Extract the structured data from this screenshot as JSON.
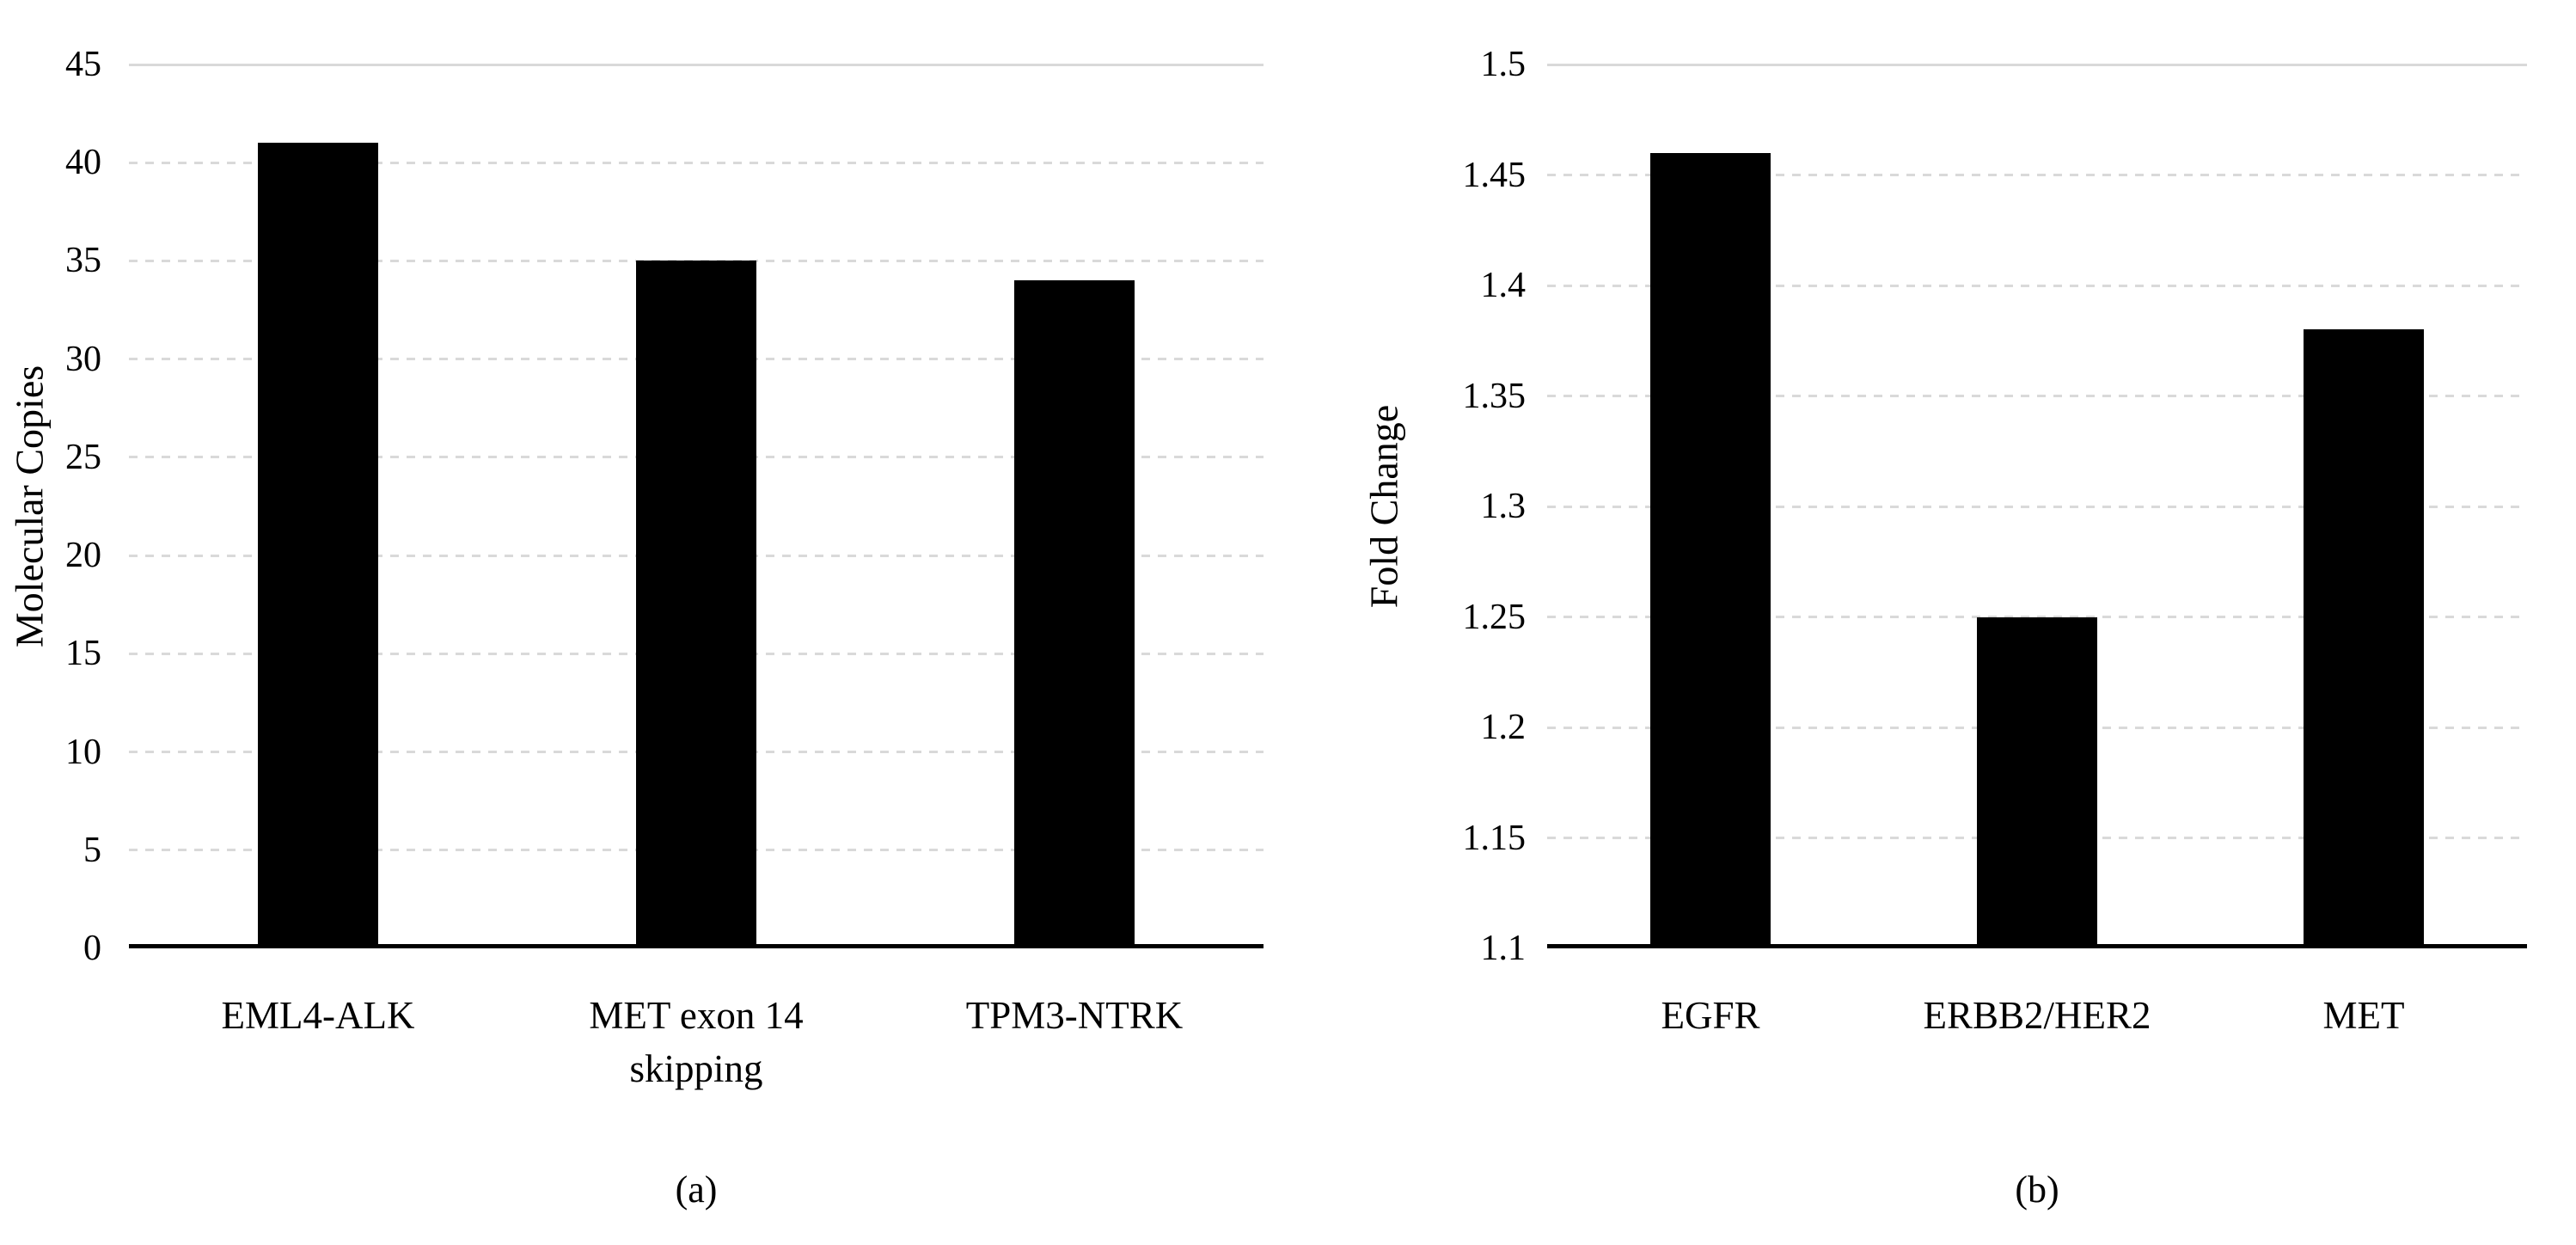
{
  "page": {
    "background": "#ffffff"
  },
  "chart_data": [
    {
      "id": "a",
      "type": "bar",
      "caption": "(a)",
      "title": "",
      "xlabel": "",
      "ylabel": "Molecular Copies",
      "categories": [
        "EML4-ALK",
        "MET exon 14 skipping",
        "TPM3-NTRK"
      ],
      "values": [
        41,
        35,
        34
      ],
      "ylim": [
        0,
        45
      ],
      "ytick_labels": [
        "0",
        "5",
        "10",
        "15",
        "20",
        "25",
        "30",
        "35",
        "40",
        "45"
      ],
      "grid": "horizontal-dotted",
      "legend_position": "none",
      "bar_color": "#000000",
      "grid_color": "#d9d9d9",
      "axis_color": "#000000"
    },
    {
      "id": "b",
      "type": "bar",
      "caption": "(b)",
      "title": "",
      "xlabel": "",
      "ylabel": "Fold Change",
      "categories": [
        "EGFR",
        "ERBB2/HER2",
        "MET"
      ],
      "values": [
        1.46,
        1.25,
        1.38
      ],
      "ylim": [
        1.1,
        1.5
      ],
      "ytick_labels": [
        "1.1",
        "1.15",
        "1.2",
        "1.25",
        "1.3",
        "1.35",
        "1.4",
        "1.45",
        "1.5"
      ],
      "grid": "horizontal-dotted",
      "legend_position": "none",
      "bar_color": "#000000",
      "grid_color": "#d9d9d9",
      "axis_color": "#000000"
    }
  ]
}
